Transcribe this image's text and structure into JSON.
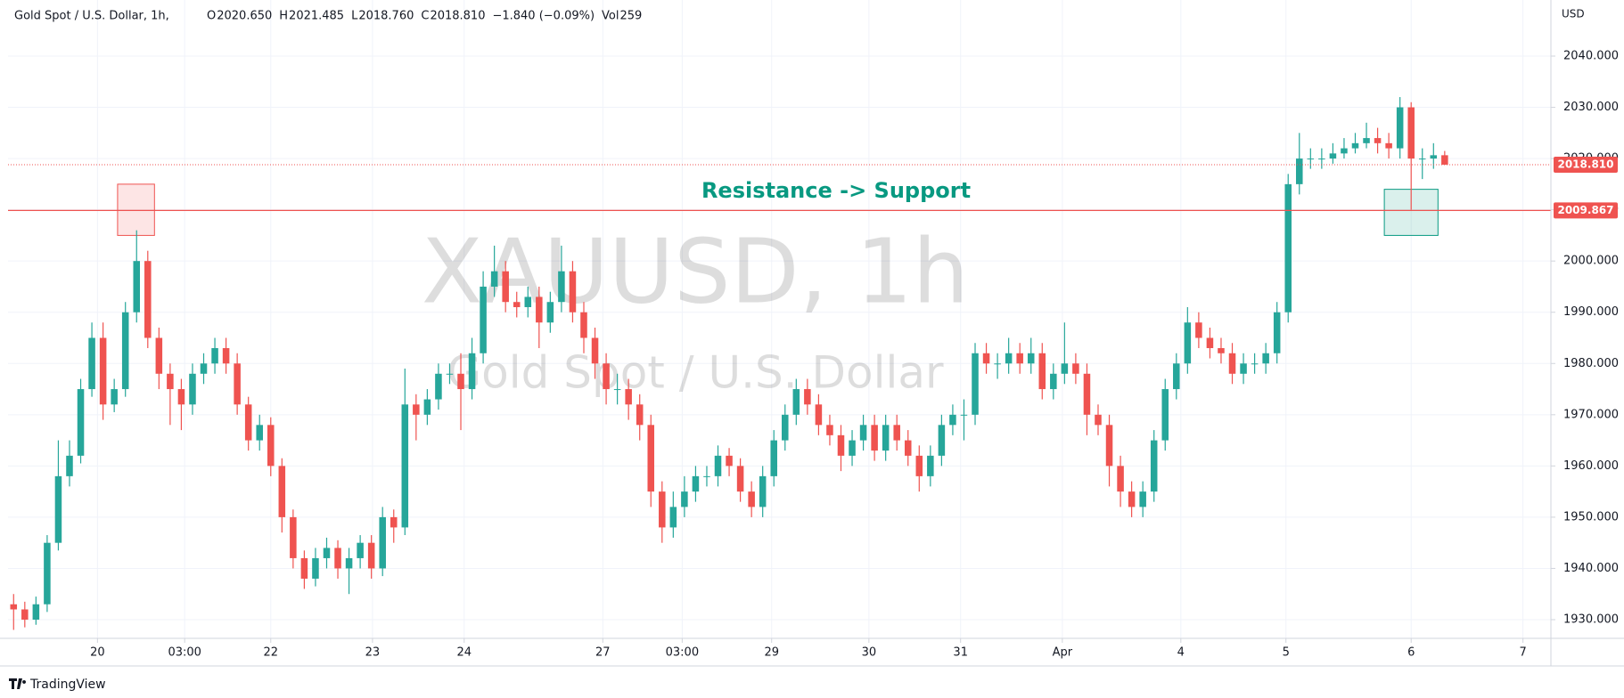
{
  "chart_data": {
    "type": "candlestick",
    "header": {
      "symbol": "Gold Spot / U.S. Dollar, 1h,",
      "ohlc": [
        {
          "key": "O",
          "value": "2020.650"
        },
        {
          "key": "H",
          "value": "2021.485"
        },
        {
          "key": "L",
          "value": "2018.760"
        },
        {
          "key": "C",
          "value": "2018.810"
        }
      ],
      "change": "−1.840 (−0.09%)",
      "volume_key": "Vol",
      "volume": "259"
    },
    "watermark": "XAUUSD, 1h",
    "watermark_subtitle": "Gold Spot / U.S. Dollar",
    "annotation": "Resistance -> Support",
    "y_unit": "USD",
    "brand": "TradingView",
    "up_color": "#26a69a",
    "down_color": "#ef5350",
    "x": [
      0,
      1,
      2,
      3,
      4,
      5,
      6,
      7,
      8,
      9,
      10,
      11,
      12,
      13,
      14,
      15,
      16,
      17,
      18,
      19,
      20,
      21,
      22,
      23,
      24,
      25,
      26,
      27,
      28,
      29,
      30,
      31,
      32,
      33,
      34,
      35,
      36,
      37,
      38,
      39,
      40,
      41,
      42,
      43,
      44,
      45,
      46,
      47,
      48,
      49,
      50,
      51,
      52,
      53,
      54,
      55,
      56,
      57,
      58,
      59,
      60,
      61,
      62,
      63,
      64,
      65,
      66,
      67,
      68,
      69,
      70,
      71,
      72,
      73,
      74,
      75,
      76,
      77,
      78,
      79,
      80,
      81,
      82,
      83,
      84,
      85,
      86,
      87,
      88,
      89,
      90,
      91,
      92,
      93,
      94,
      95,
      96,
      97,
      98,
      99,
      100,
      101,
      102,
      103,
      104,
      105,
      106,
      107,
      108,
      109,
      110,
      111,
      112,
      113,
      114,
      115,
      116,
      117,
      118,
      119,
      120,
      121,
      122,
      123,
      124,
      125,
      126,
      127,
      128
    ],
    "open": [
      1933,
      1932,
      1930,
      1933,
      1945,
      1958,
      1962,
      1975,
      1985,
      1972,
      1975,
      1990,
      2000,
      1985,
      1978,
      1975,
      1972,
      1978,
      1980,
      1983,
      1980,
      1972,
      1965,
      1968,
      1960,
      1950,
      1942,
      1938,
      1942,
      1944,
      1940,
      1942,
      1945,
      1940,
      1950,
      1948,
      1972,
      1970,
      1973,
      1978,
      1978,
      1975,
      1982,
      1995,
      1998,
      1992,
      1991,
      1993,
      1988,
      1992,
      1998,
      1990,
      1985,
      1980,
      1975,
      1975,
      1972,
      1968,
      1955,
      1948,
      1952,
      1955,
      1958,
      1958,
      1962,
      1960,
      1955,
      1952,
      1958,
      1965,
      1970,
      1975,
      1972,
      1968,
      1966,
      1962,
      1965,
      1968,
      1963,
      1968,
      1965,
      1962,
      1958,
      1962,
      1968,
      1970,
      1970,
      1982,
      1980,
      1980,
      1982,
      1980,
      1982,
      1975,
      1978,
      1980,
      1978,
      1970,
      1968,
      1960,
      1955,
      1952,
      1955,
      1965,
      1975,
      1980,
      1988,
      1985,
      1983,
      1982,
      1978,
      1980,
      1980,
      1982,
      1990,
      2015,
      2020,
      2020,
      2020,
      2021,
      2022,
      2023,
      2024,
      2023,
      2022,
      2030,
      2020,
      2020,
      2020.65
    ],
    "high": [
      1935,
      1933.5,
      1934.5,
      1946.5,
      1965,
      1965,
      1977,
      1988,
      1988,
      1977,
      1992,
      2006,
      2002,
      1987,
      1980,
      1977,
      1980,
      1982,
      1985,
      1985,
      1982,
      1973.5,
      1970,
      1969.5,
      1961.5,
      1951.5,
      1943.5,
      1944,
      1946,
      1945.5,
      1944,
      1946.5,
      1946.5,
      1952,
      1951.5,
      1979,
      1974,
      1975,
      1980,
      1980,
      1982,
      1985,
      1998,
      2003,
      2000,
      1994,
      1995,
      1995,
      1994,
      2003,
      2000,
      1992,
      1987,
      1982,
      1978,
      1977,
      1974,
      1970,
      1957,
      1955,
      1958,
      1960,
      1960,
      1964,
      1963.5,
      1961.5,
      1957,
      1960,
      1967,
      1972,
      1977,
      1977,
      1974,
      1970,
      1968,
      1967,
      1970,
      1970,
      1970,
      1970,
      1967,
      1964,
      1964,
      1970,
      1972,
      1973,
      1984,
      1984,
      1982,
      1985,
      1984,
      1985,
      1984,
      1980,
      1988,
      1982,
      1980,
      1972,
      1970,
      1962,
      1957,
      1957,
      1967,
      1977,
      1982,
      1991,
      1990,
      1987,
      1985,
      1984,
      1982,
      1982,
      1984,
      1992,
      2017,
      2025,
      2022,
      2022,
      2023,
      2024,
      2025,
      2027,
      2026,
      2025,
      2032,
      2031,
      2022,
      2023,
      2021.485
    ],
    "low": [
      1928,
      1928.5,
      1929,
      1931.5,
      1943.5,
      1956,
      1960.5,
      1973.5,
      1969,
      1970.5,
      1973.5,
      1988,
      1983,
      1975,
      1968,
      1967,
      1970,
      1976,
      1978,
      1978,
      1970,
      1963,
      1963,
      1958,
      1947,
      1940,
      1936,
      1936.5,
      1940,
      1938,
      1935,
      1940,
      1938,
      1938.5,
      1945,
      1946.5,
      1965,
      1968,
      1971,
      1976,
      1967,
      1973,
      1980,
      1993,
      1990,
      1989,
      1989,
      1983,
      1986,
      1990,
      1988,
      1982,
      1977,
      1972,
      1972,
      1969,
      1965,
      1952,
      1945,
      1946,
      1950,
      1953,
      1956,
      1956,
      1958,
      1953,
      1950,
      1950,
      1956,
      1963,
      1968,
      1970,
      1966,
      1964,
      1959,
      1960,
      1963,
      1961,
      1961,
      1963,
      1960,
      1955,
      1956,
      1960,
      1966,
      1965,
      1968,
      1978,
      1977,
      1978,
      1978,
      1978,
      1973,
      1973,
      1976,
      1976,
      1966,
      1966,
      1956,
      1952,
      1950,
      1950,
      1953,
      1963,
      1973,
      1978,
      1983,
      1981,
      1980,
      1976,
      1976,
      1978,
      1978,
      1980,
      1988,
      2013,
      2018,
      2018,
      2019,
      2020,
      2021,
      2022,
      2021,
      2020,
      2020,
      2010,
      2016,
      2018,
      2018.76
    ],
    "close": [
      1932,
      1930,
      1933,
      1945,
      1958,
      1962,
      1975,
      1985,
      1972,
      1975,
      1990,
      2000,
      1985,
      1978,
      1975,
      1972,
      1978,
      1980,
      1983,
      1980,
      1972,
      1965,
      1968,
      1960,
      1950,
      1942,
      1938,
      1942,
      1944,
      1940,
      1942,
      1945,
      1940,
      1950,
      1948,
      1972,
      1970,
      1973,
      1978,
      1978,
      1975,
      1982,
      1995,
      1998,
      1992,
      1991,
      1993,
      1988,
      1992,
      1998,
      1990,
      1985,
      1980,
      1975,
      1975,
      1972,
      1968,
      1955,
      1948,
      1952,
      1955,
      1958,
      1958,
      1962,
      1960,
      1955,
      1952,
      1958,
      1965,
      1970,
      1975,
      1972,
      1968,
      1966,
      1962,
      1965,
      1968,
      1963,
      1968,
      1965,
      1962,
      1958,
      1962,
      1968,
      1970,
      1970,
      1982,
      1980,
      1980,
      1982,
      1980,
      1982,
      1975,
      1978,
      1980,
      1978,
      1970,
      1968,
      1960,
      1955,
      1952,
      1955,
      1965,
      1975,
      1980,
      1988,
      1985,
      1983,
      1982,
      1978,
      1980,
      1980,
      1982,
      1990,
      2015,
      2020,
      2020,
      2020,
      2021,
      2022,
      2023,
      2024,
      2023,
      2022,
      2030,
      2020,
      2020,
      2020.65,
      2018.81
    ],
    "xlim": [
      -0.5,
      137.5
    ],
    "xticks": [
      {
        "value": 7.5,
        "label": "20"
      },
      {
        "value": 15.3,
        "label": "03:00"
      },
      {
        "value": 23,
        "label": "22"
      },
      {
        "value": 32.1,
        "label": "23"
      },
      {
        "value": 40.3,
        "label": "24"
      },
      {
        "value": 52.7,
        "label": "27"
      },
      {
        "value": 59.8,
        "label": "03:00"
      },
      {
        "value": 67.8,
        "label": "29"
      },
      {
        "value": 76.5,
        "label": "30"
      },
      {
        "value": 84.7,
        "label": "31"
      },
      {
        "value": 93.8,
        "label": "Apr"
      },
      {
        "value": 104.4,
        "label": "4"
      },
      {
        "value": 113.8,
        "label": "5"
      },
      {
        "value": 125,
        "label": "6"
      },
      {
        "value": 135,
        "label": "7"
      }
    ],
    "ylim": [
      1926.35,
      2050.95
    ],
    "yticks": [
      {
        "value": 1930,
        "label": "1930.000"
      },
      {
        "value": 1940,
        "label": "1940.000"
      },
      {
        "value": 1950,
        "label": "1950.000"
      },
      {
        "value": 1960,
        "label": "1960.000"
      },
      {
        "value": 1970,
        "label": "1970.000"
      },
      {
        "value": 1980,
        "label": "1980.000"
      },
      {
        "value": 1990,
        "label": "1990.000"
      },
      {
        "value": 2000,
        "label": "2000.000"
      },
      {
        "value": 2010,
        "label": "2010.000"
      },
      {
        "value": 2020,
        "label": "2020.000"
      },
      {
        "value": 2030,
        "label": "2030.000"
      },
      {
        "value": 2040,
        "label": "2040.000"
      }
    ],
    "grid": true,
    "last_price": {
      "value": 2018.81,
      "label": "2018.810",
      "color": "#ef5350"
    },
    "level": {
      "value": 2009.867,
      "label": "2009.867",
      "color": "#ef5350"
    },
    "boxes": [
      {
        "x": [
          9.3,
          12.6
        ],
        "y": [
          2005,
          2015
        ],
        "color": "#ef5350"
      },
      {
        "x": [
          122.6,
          127.4
        ],
        "y": [
          2005,
          2014
        ],
        "color": "#089981"
      }
    ]
  }
}
